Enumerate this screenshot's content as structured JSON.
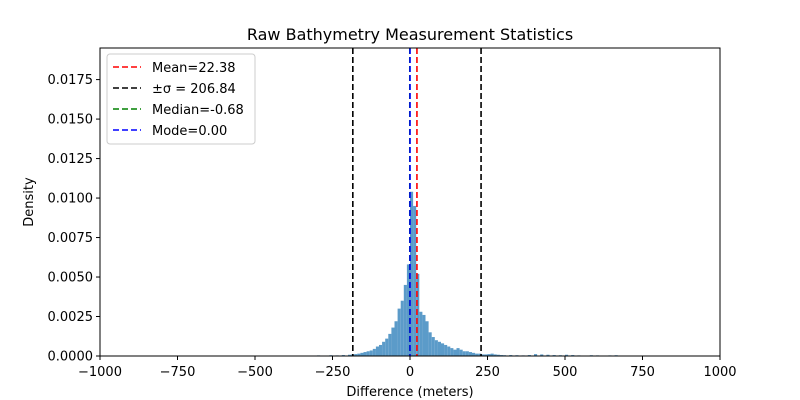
{
  "chart_data": {
    "type": "bar",
    "title": "Raw Bathymetry Measurement Statistics",
    "xlabel": "Difference (meters)",
    "ylabel": "Density",
    "xlim": [
      -1000,
      1000
    ],
    "ylim": [
      0,
      0.0195
    ],
    "x_ticks": [
      -1000,
      -750,
      -500,
      -250,
      0,
      250,
      500,
      750,
      1000
    ],
    "x_tick_labels": [
      "−1000",
      "−750",
      "−500",
      "−250",
      "0",
      "250",
      "500",
      "750",
      "1000"
    ],
    "y_ticks": [
      0,
      0.0025,
      0.005,
      0.0075,
      0.01,
      0.0125,
      0.015,
      0.0175
    ],
    "y_tick_labels": [
      "0.0000",
      "0.0025",
      "0.0050",
      "0.0075",
      "0.0100",
      "0.0125",
      "0.0150",
      "0.0175"
    ],
    "grid": false,
    "bar_color": "#5b9bc9",
    "bin_width": 10,
    "bins": [
      [
        -340,
        2e-05
      ],
      [
        -320,
        3e-05
      ],
      [
        -300,
        4e-05
      ],
      [
        -280,
        3e-05
      ],
      [
        -260,
        5e-05
      ],
      [
        -240,
        4e-05
      ],
      [
        -220,
        6e-05
      ],
      [
        -200,
        8e-05
      ],
      [
        -190,
        0.0001
      ],
      [
        -180,
        0.00012
      ],
      [
        -170,
        0.00015
      ],
      [
        -160,
        0.0002
      ],
      [
        -150,
        0.00025
      ],
      [
        -140,
        0.0003
      ],
      [
        -130,
        0.00035
      ],
      [
        -120,
        0.00045
      ],
      [
        -110,
        0.0006
      ],
      [
        -100,
        0.0007
      ],
      [
        -90,
        0.0009
      ],
      [
        -80,
        0.0011
      ],
      [
        -70,
        0.0014
      ],
      [
        -60,
        0.0018
      ],
      [
        -50,
        0.0022
      ],
      [
        -40,
        0.003
      ],
      [
        -30,
        0.0035
      ],
      [
        -20,
        0.0045
      ],
      [
        -10,
        0.0058
      ],
      [
        0,
        0.0104
      ],
      [
        10,
        0.0095
      ],
      [
        20,
        0.0052
      ],
      [
        30,
        0.0028
      ],
      [
        40,
        0.0026
      ],
      [
        50,
        0.0022
      ],
      [
        60,
        0.0015
      ],
      [
        70,
        0.0012
      ],
      [
        80,
        0.001
      ],
      [
        90,
        0.0009
      ],
      [
        100,
        0.0008
      ],
      [
        110,
        0.0007
      ],
      [
        120,
        0.0006
      ],
      [
        130,
        0.0005
      ],
      [
        140,
        0.0004
      ],
      [
        150,
        0.0005
      ],
      [
        160,
        0.0004
      ],
      [
        170,
        0.0003
      ],
      [
        180,
        0.0003
      ],
      [
        190,
        0.00025
      ],
      [
        200,
        0.0002
      ],
      [
        210,
        0.00015
      ],
      [
        220,
        0.00015
      ],
      [
        230,
        0.0001
      ],
      [
        240,
        0.0001
      ],
      [
        250,
        0.00012
      ],
      [
        260,
        0.00015
      ],
      [
        270,
        0.0001
      ],
      [
        280,
        8e-05
      ],
      [
        290,
        6e-05
      ],
      [
        300,
        5e-05
      ],
      [
        320,
        6e-05
      ],
      [
        340,
        5e-05
      ],
      [
        360,
        4e-05
      ],
      [
        380,
        6e-05
      ],
      [
        400,
        0.00012
      ],
      [
        420,
        0.0001
      ],
      [
        440,
        8e-05
      ],
      [
        460,
        6e-05
      ],
      [
        480,
        5e-05
      ],
      [
        500,
        8e-05
      ],
      [
        520,
        6e-05
      ],
      [
        540,
        4e-05
      ],
      [
        560,
        3e-05
      ],
      [
        580,
        5e-05
      ],
      [
        600,
        4e-05
      ],
      [
        620,
        3e-05
      ],
      [
        640,
        4e-05
      ],
      [
        660,
        5e-05
      ],
      [
        680,
        3e-05
      ],
      [
        700,
        2e-05
      ],
      [
        720,
        3e-05
      ],
      [
        740,
        2e-05
      ],
      [
        760,
        3e-05
      ],
      [
        770,
        3e-05
      ]
    ],
    "vlines": [
      {
        "name": "mean-line",
        "x": 22.38,
        "color": "#ff0000"
      },
      {
        "name": "sigma-line-low",
        "x": -184.46,
        "color": "#000000"
      },
      {
        "name": "sigma-line-high",
        "x": 229.22,
        "color": "#000000"
      },
      {
        "name": "median-line",
        "x": -0.68,
        "color": "#008000"
      },
      {
        "name": "mode-line",
        "x": 0.0,
        "color": "#0000ff"
      }
    ],
    "legend": {
      "placement": "top-left",
      "entries": [
        {
          "label": "Mean=22.38",
          "color": "#ff0000"
        },
        {
          "label": "±σ = 206.84",
          "color": "#000000"
        },
        {
          "label": "Median=-0.68",
          "color": "#008000"
        },
        {
          "label": "Mode=0.00",
          "color": "#0000ff"
        }
      ]
    }
  }
}
